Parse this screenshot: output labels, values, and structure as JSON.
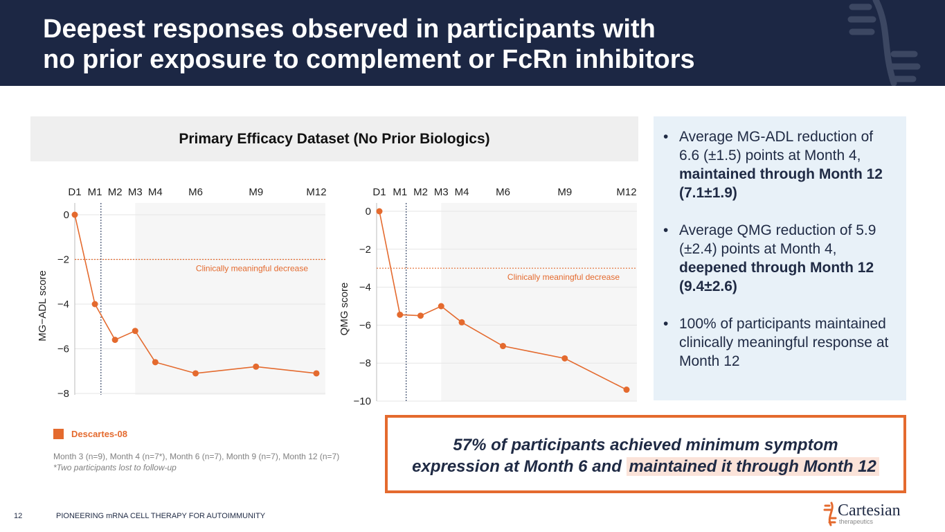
{
  "header": {
    "title_line1": "Deepest responses observed in participants with",
    "title_line2": "no prior exposure to complement or FcRn inhibitors"
  },
  "panel": {
    "title": "Primary Efficacy Dataset (No Prior Biologics)"
  },
  "chart_data": [
    {
      "type": "line",
      "categories": [
        "D1",
        "M1",
        "M2",
        "M3",
        "M4",
        "M6",
        "M9",
        "M12"
      ],
      "x_months": [
        0,
        1,
        2,
        3,
        4,
        6,
        9,
        12
      ],
      "series": [
        {
          "name": "Descartes-08",
          "values": [
            0,
            -4.0,
            -5.6,
            -5.2,
            -6.6,
            -7.1,
            -6.8,
            -7.1
          ]
        }
      ],
      "xlabel": "",
      "ylabel": "MG−ADL score",
      "ylim": [
        -8,
        0
      ],
      "yticks": [
        "0",
        "−2",
        "−4",
        "−6",
        "−8"
      ],
      "yticks_values": [
        0,
        -2,
        -4,
        -6,
        -8
      ],
      "threshold_value": -2,
      "threshold_label": "Clinically meaningful decrease",
      "shaded_from_month": 3,
      "vline_month": 1.3,
      "color": "#e46a2e"
    },
    {
      "type": "line",
      "categories": [
        "D1",
        "M1",
        "M2",
        "M3",
        "M4",
        "M6",
        "M9",
        "M12"
      ],
      "x_months": [
        0,
        1,
        2,
        3,
        4,
        6,
        9,
        12
      ],
      "series": [
        {
          "name": "Descartes-08",
          "values": [
            0,
            -5.45,
            -5.5,
            -5.0,
            -5.85,
            -7.1,
            -7.75,
            -9.4
          ]
        }
      ],
      "xlabel": "",
      "ylabel": "QMG score",
      "ylim": [
        -10,
        0
      ],
      "yticks": [
        "0",
        "−2",
        "−4",
        "−6",
        "−8",
        "−10"
      ],
      "yticks_values": [
        0,
        -2,
        -4,
        -6,
        -8,
        -10
      ],
      "threshold_value": -3,
      "threshold_label": "Clinically meaningful decrease",
      "shaded_from_month": 3,
      "vline_month": 1.3,
      "color": "#e46a2e"
    }
  ],
  "bullets": [
    {
      "text": "Average MG-ADL reduction of 6.6 (±1.5) points at Month 4, ",
      "bold": "maintained through Month 12 (7.1±1.9)"
    },
    {
      "text": "Average QMG reduction of 5.9 (±2.4) points at Month 4, ",
      "bold": "deepened through Month 12 (9.4±2.6)"
    },
    {
      "text": "100% of participants maintained clinically meaningful response at Month 12",
      "bold": ""
    }
  ],
  "bullet_symbol": "•",
  "legend": {
    "label": "Descartes-08",
    "color": "#e46a2e"
  },
  "notes": {
    "line1": "Month 3 (n=9), Month 4 (n=7*), Month 6 (n=7), Month 9 (n=7), Month 12 (n=7)",
    "line2": "*Two participants lost to follow-up"
  },
  "callout": {
    "line1": "57% of participants achieved minimum symptom",
    "line2_plain": "expression at Month 6 and ",
    "line2_highlight": "maintained it through Month 12"
  },
  "footer": {
    "page_number": "12",
    "tagline": "PIONEERING mRNA CELL THERAPY FOR AUTOIMMUNITY",
    "brand_name": "Cartesian",
    "brand_sub": "therapeutics"
  },
  "colors": {
    "navy": "#1c2744",
    "accent": "#e46a2e",
    "bullet_bg": "#e8f1f8"
  }
}
